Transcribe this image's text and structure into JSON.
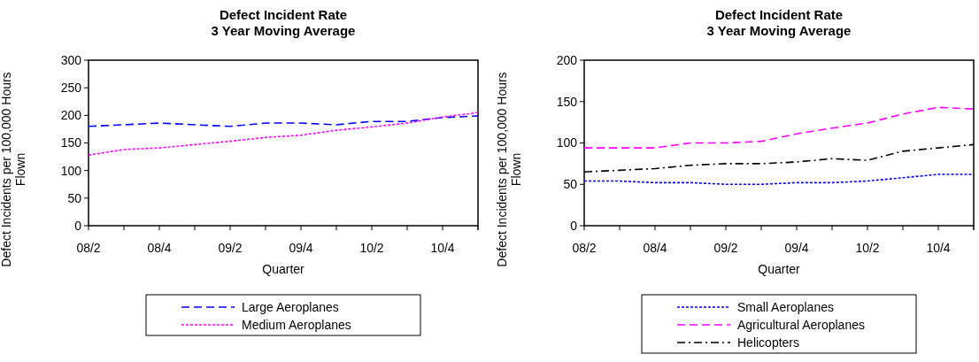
{
  "chart_data": [
    {
      "type": "line",
      "title": "Defect Incident Rate\n3 Year Moving Average",
      "xlabel": "Quarter",
      "ylabel": "Defect Incidents per 100,000 Hours Flown",
      "categories": [
        "08/2",
        null,
        "08/4",
        null,
        "09/2",
        null,
        "09/4",
        null,
        "10/2",
        null,
        "10/4",
        null
      ],
      "series": [
        {
          "name": "Large Aeroplanes",
          "color": "#0000ff",
          "line_style": "dashed",
          "values": [
            180,
            183,
            186,
            183,
            180,
            186,
            186,
            183,
            189,
            189,
            196,
            199
          ]
        },
        {
          "name": "Medium Aeroplanes",
          "color": "#ff00ff",
          "line_style": "dotted",
          "values": [
            128,
            138,
            141,
            147,
            153,
            160,
            164,
            173,
            179,
            186,
            197,
            205
          ]
        }
      ],
      "ylim": [
        0,
        300
      ],
      "yticks": [
        0,
        50,
        100,
        150,
        200,
        250,
        300
      ],
      "grid": false,
      "legend": "bottom",
      "marker": "none"
    },
    {
      "type": "line",
      "title": "Defect Incident Rate\n3 Year Moving Average",
      "xlabel": "Quarter",
      "ylabel": "Defect Incidents per 100,000 Hours Flown",
      "categories": [
        "08/2",
        null,
        "08/4",
        null,
        "09/2",
        null,
        "09/4",
        null,
        "10/2",
        null,
        "10/4",
        null
      ],
      "series": [
        {
          "name": "Small Aeroplanes",
          "color": "#0000ff",
          "line_style": "dotted",
          "values": [
            54,
            54,
            52,
            52,
            50,
            50,
            52,
            52,
            54,
            58,
            62,
            62
          ]
        },
        {
          "name": "Agricultural Aeroplanes",
          "color": "#ff00ff",
          "line_style": "dashed",
          "values": [
            94,
            94,
            94,
            100,
            100,
            102,
            111,
            118,
            124,
            135,
            143,
            141
          ]
        },
        {
          "name": "Helicopters",
          "color": "#000000",
          "line_style": "dashdot",
          "values": [
            65,
            67,
            69,
            73,
            75,
            75,
            77,
            81,
            79,
            90,
            94,
            98
          ]
        }
      ],
      "ylim": [
        0,
        200
      ],
      "yticks": [
        0,
        50,
        100,
        150,
        200
      ],
      "grid": false,
      "legend": "bottom",
      "marker": "none"
    }
  ]
}
